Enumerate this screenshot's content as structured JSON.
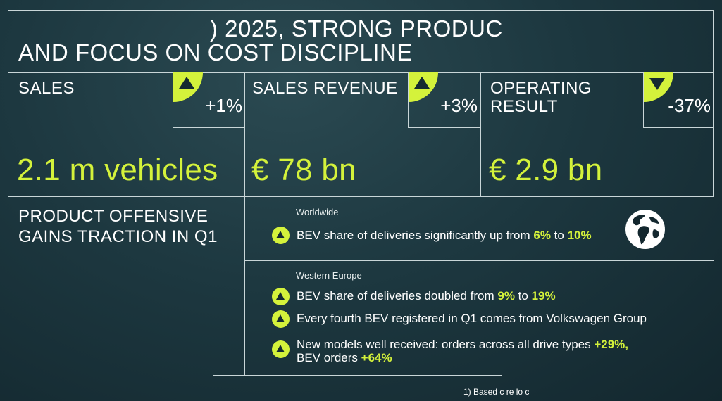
{
  "title": {
    "line1": ") 2025, STRONG PRODUC",
    "line2": "AND FOCUS ON COST DISCIPLINE"
  },
  "kpis": [
    {
      "label": "SALES",
      "label2": "",
      "change": "+1%",
      "direction": "up",
      "value": "2.1 m vehicles"
    },
    {
      "label": "SALES REVENUE",
      "label2": "",
      "change": "+3%",
      "direction": "up",
      "value": "€ 78 bn"
    },
    {
      "label": "OPERATING",
      "label2": "RESULT",
      "change": "-37%",
      "direction": "down",
      "value": "€ 2.9 bn"
    }
  ],
  "product": {
    "heading1": "PRODUCT OFFENSIVE",
    "heading2": "GAINS TRACTION IN Q1",
    "worldwide": {
      "region": "Worldwide",
      "bullet": {
        "pre": "BEV share of deliveries significantly up from ",
        "a": "6%",
        "mid": " to ",
        "b": "10%"
      },
      "icon": "globe-icon"
    },
    "western_europe": {
      "region": "Western Europe",
      "bullet1": {
        "pre": "BEV share of deliveries doubled from ",
        "a": "9%",
        "mid": " to ",
        "b": "19%"
      },
      "bullet2": "Every fourth BEV registered in Q1 comes from Volkswagen Group",
      "bullet3": {
        "line1_pre": "New models well received: orders across all drive types ",
        "line1_val": "+29%,",
        "line2_pre": "BEV orders ",
        "line2_val": "+64%"
      }
    }
  },
  "footnote": "1)  Based c            re lo  c",
  "colors": {
    "accent": "#d4f23b",
    "background": "#1d3840",
    "lines": "#c9d6d8"
  }
}
